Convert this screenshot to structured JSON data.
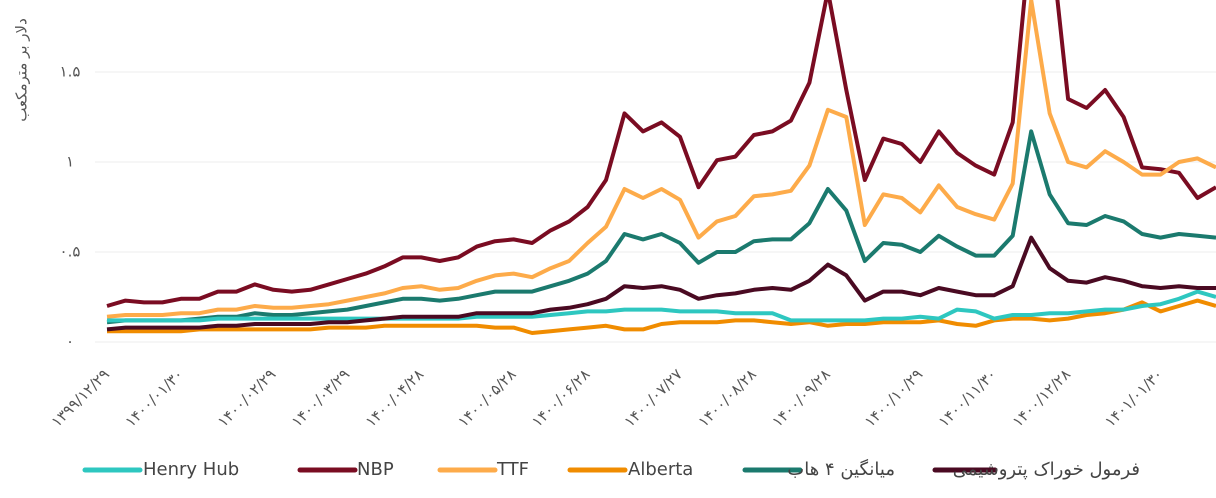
{
  "chart_data": {
    "type": "line",
    "y_label": "دلار بر مترمکعب",
    "categories": [
      "۱۳۹۹/۱۲/۲۹",
      null,
      null,
      null,
      "۱۴۰۰/۰۱/۳۰",
      null,
      null,
      null,
      null,
      "۱۴۰۰/۰۲/۲۹",
      null,
      null,
      null,
      "۱۴۰۰/۰۳/۲۹",
      null,
      null,
      null,
      "۱۴۰۰/۰۴/۲۸",
      null,
      null,
      null,
      null,
      "۱۴۰۰/۰۵/۲۸",
      null,
      null,
      null,
      "۱۴۰۰/۰۶/۲۸",
      null,
      null,
      null,
      null,
      "۱۴۰۰/۰۷/۲۷",
      null,
      null,
      null,
      "۱۴۰۰/۰۸/۲۸",
      null,
      null,
      null,
      "۱۴۰۰/۰۹/۲۸",
      null,
      null,
      null,
      null,
      "۱۴۰۰/۱۰/۲۹",
      null,
      null,
      null,
      "۱۴۰۰/۱۱/۳۰",
      null,
      null,
      null,
      "۱۴۰۰/۱۲/۲۸",
      null,
      null,
      null,
      null,
      "۱۴۰۱/۰۱/۳۰",
      null,
      null,
      null
    ],
    "series": [
      {
        "name": "Henry Hub",
        "color": "#2ec7c0",
        "values": [
          0.12,
          0.12,
          0.12,
          0.12,
          0.12,
          0.12,
          0.13,
          0.13,
          0.13,
          0.13,
          0.13,
          0.13,
          0.13,
          0.13,
          0.13,
          0.13,
          0.13,
          0.13,
          0.13,
          0.13,
          0.14,
          0.14,
          0.14,
          0.14,
          0.15,
          0.16,
          0.17,
          0.17,
          0.18,
          0.18,
          0.18,
          0.17,
          0.17,
          0.17,
          0.16,
          0.16,
          0.16,
          0.12,
          0.12,
          0.12,
          0.12,
          0.12,
          0.13,
          0.13,
          0.14,
          0.13,
          0.18,
          0.17,
          0.13,
          0.15,
          0.15,
          0.16,
          0.16,
          0.17,
          0.18,
          0.18,
          0.2,
          0.21,
          0.24,
          0.28,
          0.25
        ]
      },
      {
        "name": "NBP",
        "color": "#7a0c22",
        "values": [
          0.2,
          0.23,
          0.22,
          0.22,
          0.24,
          0.24,
          0.28,
          0.28,
          0.32,
          0.29,
          0.28,
          0.29,
          0.32,
          0.35,
          0.38,
          0.42,
          0.47,
          0.47,
          0.45,
          0.47,
          0.53,
          0.56,
          0.57,
          0.55,
          0.62,
          0.67,
          0.75,
          0.9,
          1.27,
          1.17,
          1.22,
          1.14,
          0.86,
          1.01,
          1.03,
          1.15,
          1.17,
          1.23,
          1.44,
          1.95,
          1.4,
          0.9,
          1.13,
          1.1,
          1.0,
          1.17,
          1.05,
          0.98,
          0.93,
          1.22,
          2.3,
          2.3,
          1.35,
          1.3,
          1.4,
          1.25,
          0.97,
          0.96,
          0.94,
          0.8,
          0.86
        ]
      },
      {
        "name": "TTF",
        "color": "#fdab4a",
        "values": [
          0.14,
          0.15,
          0.15,
          0.15,
          0.16,
          0.16,
          0.18,
          0.18,
          0.2,
          0.19,
          0.19,
          0.2,
          0.21,
          0.23,
          0.25,
          0.27,
          0.3,
          0.31,
          0.29,
          0.3,
          0.34,
          0.37,
          0.38,
          0.36,
          0.41,
          0.45,
          0.55,
          0.64,
          0.85,
          0.8,
          0.85,
          0.79,
          0.58,
          0.67,
          0.7,
          0.81,
          0.82,
          0.84,
          0.98,
          1.29,
          1.25,
          0.65,
          0.82,
          0.8,
          0.72,
          0.87,
          0.75,
          0.71,
          0.68,
          0.88,
          1.9,
          1.27,
          1.0,
          0.97,
          1.06,
          1.0,
          0.93,
          0.93,
          1.0,
          1.02,
          0.97
        ]
      },
      {
        "name": "Alberta",
        "color": "#f08c00",
        "values": [
          0.06,
          0.06,
          0.06,
          0.06,
          0.06,
          0.07,
          0.07,
          0.07,
          0.07,
          0.07,
          0.07,
          0.07,
          0.08,
          0.08,
          0.08,
          0.09,
          0.09,
          0.09,
          0.09,
          0.09,
          0.09,
          0.08,
          0.08,
          0.05,
          0.06,
          0.07,
          0.08,
          0.09,
          0.07,
          0.07,
          0.1,
          0.11,
          0.11,
          0.11,
          0.12,
          0.12,
          0.11,
          0.1,
          0.11,
          0.09,
          0.1,
          0.1,
          0.11,
          0.11,
          0.11,
          0.12,
          0.1,
          0.09,
          0.12,
          0.13,
          0.13,
          0.12,
          0.13,
          0.15,
          0.16,
          0.18,
          0.22,
          0.17,
          0.2,
          0.23,
          0.2
        ]
      },
      {
        "name": "میانگین ۴ هاب",
        "color": "#1b7a6e",
        "values": [
          0.11,
          0.12,
          0.12,
          0.12,
          0.12,
          0.13,
          0.14,
          0.14,
          0.16,
          0.15,
          0.15,
          0.16,
          0.17,
          0.18,
          0.2,
          0.22,
          0.24,
          0.24,
          0.23,
          0.24,
          0.26,
          0.28,
          0.28,
          0.28,
          0.31,
          0.34,
          0.38,
          0.45,
          0.6,
          0.57,
          0.6,
          0.55,
          0.44,
          0.5,
          0.5,
          0.56,
          0.57,
          0.57,
          0.66,
          0.85,
          0.73,
          0.45,
          0.55,
          0.54,
          0.5,
          0.59,
          0.53,
          0.48,
          0.48,
          0.59,
          1.17,
          0.82,
          0.66,
          0.65,
          0.7,
          0.67,
          0.6,
          0.58,
          0.6,
          0.59,
          0.58
        ]
      },
      {
        "name": "فرمول خوراک پتروشیمی",
        "color": "#4a0a22",
        "values": [
          0.07,
          0.08,
          0.08,
          0.08,
          0.08,
          0.08,
          0.09,
          0.09,
          0.1,
          0.1,
          0.1,
          0.1,
          0.11,
          0.11,
          0.12,
          0.13,
          0.14,
          0.14,
          0.14,
          0.14,
          0.16,
          0.16,
          0.16,
          0.16,
          0.18,
          0.19,
          0.21,
          0.24,
          0.31,
          0.3,
          0.31,
          0.29,
          0.24,
          0.26,
          0.27,
          0.29,
          0.3,
          0.29,
          0.34,
          0.43,
          0.37,
          0.23,
          0.28,
          0.28,
          0.26,
          0.3,
          0.28,
          0.26,
          0.26,
          0.31,
          0.58,
          0.41,
          0.34,
          0.33,
          0.36,
          0.34,
          0.31,
          0.3,
          0.31,
          0.3,
          0.3
        ]
      }
    ],
    "ylim": [
      0,
      1.9
    ],
    "yticks": [
      {
        "value": 0,
        "label": "۰"
      },
      {
        "value": 0.5,
        "label": "۰.۵"
      },
      {
        "value": 1,
        "label": "۱"
      },
      {
        "value": 1.5,
        "label": "۱.۵"
      }
    ],
    "grid": true
  }
}
